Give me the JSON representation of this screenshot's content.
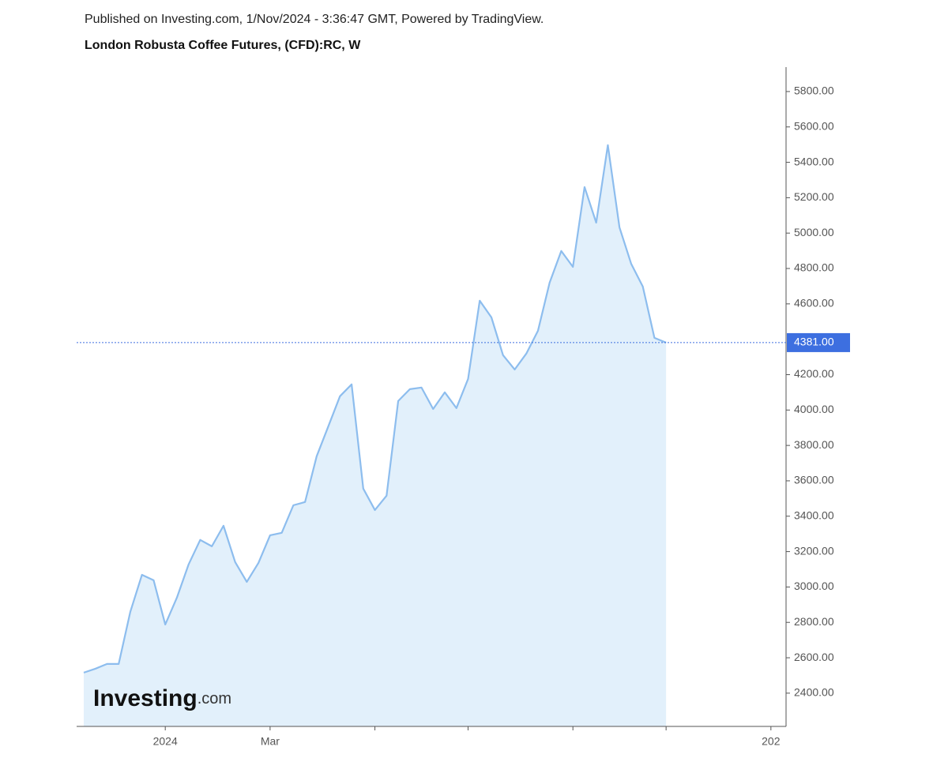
{
  "chart_data": {
    "type": "line",
    "source": "Published on Investing.com, 1/Nov/2024 - 3:36:47 GMT, Powered by TradingView.",
    "title": "London Robusta Coffee Futures, (CFD):RC, W",
    "watermark": "Investing",
    "watermark_suffix": ".com",
    "values": [
      2516,
      2538,
      2565,
      2565,
      2860,
      3069,
      3038,
      2788,
      2940,
      3127,
      3266,
      3230,
      3346,
      3141,
      3029,
      3136,
      3292,
      3306,
      3462,
      3480,
      3739,
      3908,
      4078,
      4145,
      3556,
      3435,
      3516,
      4051,
      4118,
      4127,
      4006,
      4100,
      4011,
      4176,
      4618,
      4524,
      4310,
      4229,
      4319,
      4448,
      4720,
      4899,
      4809,
      5260,
      5059,
      5497,
      5032,
      4827,
      4698,
      4408,
      4381
    ],
    "color": "#8dbdee",
    "fill": "#e2f0fb",
    "last_price": {
      "value": 4381,
      "label": "4381.00"
    },
    "last_price_color": "#3d6fe0",
    "xlim": [
      -0.61,
      60.3
    ],
    "xticks": [
      {
        "value": 7,
        "label": "2024"
      },
      {
        "value": 16,
        "label": "Mar"
      },
      {
        "value": 25,
        "label": null
      },
      {
        "value": 33,
        "label": null
      },
      {
        "value": 42,
        "label": null
      },
      {
        "value": 50,
        "label": null
      },
      {
        "value": 59,
        "label": "202"
      }
    ],
    "ylim": [
      2212,
      5938
    ],
    "yticks": [
      {
        "value": 2400,
        "label": "2400.00"
      },
      {
        "value": 2600,
        "label": "2600.00"
      },
      {
        "value": 2800,
        "label": "2800.00"
      },
      {
        "value": 3000,
        "label": "3000.00"
      },
      {
        "value": 3200,
        "label": "3200.00"
      },
      {
        "value": 3400,
        "label": "3400.00"
      },
      {
        "value": 3600,
        "label": "3600.00"
      },
      {
        "value": 3800,
        "label": "3800.00"
      },
      {
        "value": 4000,
        "label": "4000.00"
      },
      {
        "value": 4200,
        "label": "4200.00"
      },
      {
        "value": 4600,
        "label": "4600.00"
      },
      {
        "value": 4800,
        "label": "4800.00"
      },
      {
        "value": 5000,
        "label": "5000.00"
      },
      {
        "value": 5200,
        "label": "5200.00"
      },
      {
        "value": 5400,
        "label": "5400.00"
      },
      {
        "value": 5600,
        "label": "5600.00"
      },
      {
        "value": 5800,
        "label": "5800.00"
      }
    ]
  }
}
